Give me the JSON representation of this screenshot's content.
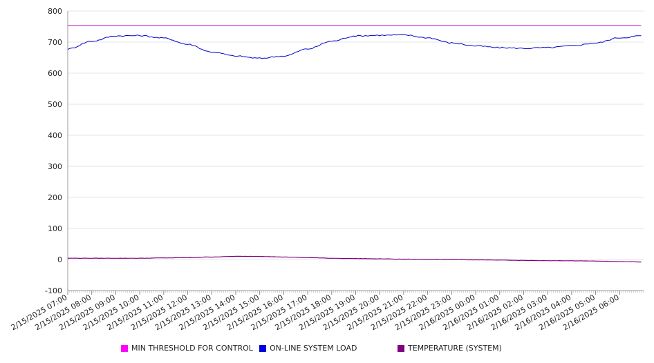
{
  "chart_data": {
    "type": "line",
    "title": "",
    "xlabel": "",
    "ylabel": "",
    "ylim": [
      -100,
      800
    ],
    "yticks": [
      800,
      700,
      600,
      500,
      400,
      300,
      200,
      100,
      0,
      -100
    ],
    "grid": true,
    "legend_position": "bottom",
    "x": [
      "2/15/2025 07:00",
      "2/15/2025 08:00",
      "2/15/2025 09:00",
      "2/15/2025 10:00",
      "2/15/2025 11:00",
      "2/15/2025 12:00",
      "2/15/2025 13:00",
      "2/15/2025 14:00",
      "2/15/2025 15:00",
      "2/15/2025 16:00",
      "2/15/2025 17:00",
      "2/15/2025 18:00",
      "2/15/2025 19:00",
      "2/15/2025 20:00",
      "2/15/2025 21:00",
      "2/15/2025 22:00",
      "2/15/2025 23:00",
      "2/16/2025 00:00",
      "2/16/2025 01:00",
      "2/16/2025 02:00",
      "2/16/2025 03:00",
      "2/16/2025 04:00",
      "2/16/2025 05:00",
      "2/16/2025 06:00"
    ],
    "series": [
      {
        "name": "MIN THRESHOLD FOR CONTROL",
        "color": "#cc33cc",
        "values": [
          753,
          753,
          753,
          753,
          753,
          753,
          753,
          753,
          753,
          753,
          753,
          753,
          753,
          753,
          753,
          753,
          753,
          753,
          753,
          753,
          753,
          753,
          753,
          753
        ]
      },
      {
        "name": "ON-LINE SYSTEM LOAD",
        "color": "#0000cc",
        "values": [
          678,
          703,
          720,
          721,
          713,
          693,
          668,
          655,
          648,
          655,
          678,
          703,
          720,
          722,
          723,
          714,
          697,
          688,
          682,
          680,
          682,
          688,
          697,
          714
        ]
      },
      {
        "name": "TEMPERATURE (SYSTEM)",
        "color": "#800080",
        "values": [
          4,
          4,
          4,
          4,
          5,
          6,
          8,
          10,
          10,
          8,
          6,
          4,
          3,
          2,
          1,
          0,
          0,
          -1,
          -2,
          -3,
          -4,
          -4,
          -5,
          -7
        ]
      }
    ]
  }
}
